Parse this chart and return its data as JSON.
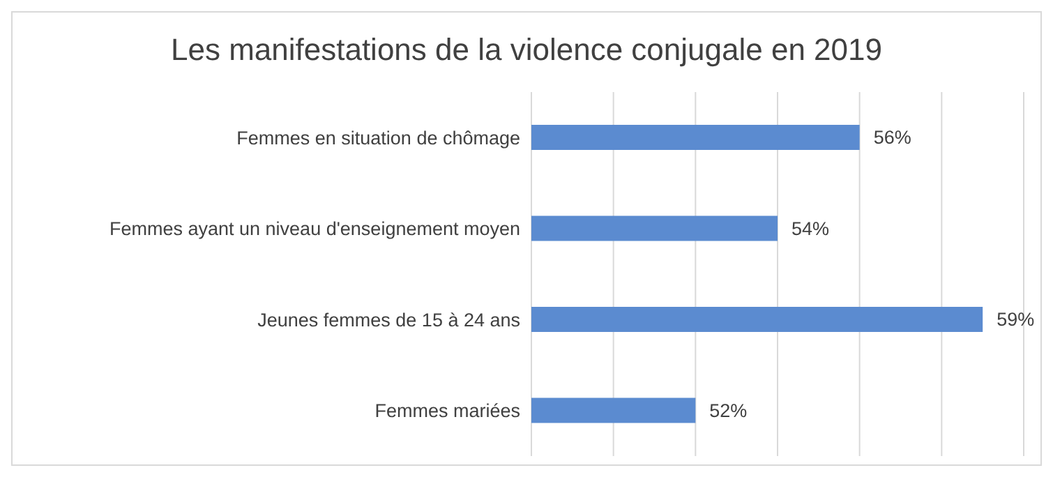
{
  "chart_data": {
    "type": "bar",
    "orientation": "horizontal",
    "title": "Les manifestations de la violence conjugale en 2019",
    "categories": [
      "Femmes en situation de chômage",
      "Femmes ayant un niveau d'enseignement moyen",
      "Jeunes femmes de 15 à 24 ans ",
      "Femmes mariées"
    ],
    "values": [
      56,
      54,
      59,
      52
    ],
    "value_labels": [
      "56%",
      "54%",
      "59%",
      "52%"
    ],
    "color": "#5b8bd0",
    "xlim": [
      48,
      60
    ],
    "xticks": [
      {
        "value": 48,
        "label": null
      },
      {
        "value": 50,
        "label": null
      },
      {
        "value": 52,
        "label": null
      },
      {
        "value": 54,
        "label": null
      },
      {
        "value": 56,
        "label": null
      },
      {
        "value": 58,
        "label": null
      },
      {
        "value": 60,
        "label": null
      }
    ],
    "grid": "x",
    "tick_labels": "y",
    "legend": false
  }
}
